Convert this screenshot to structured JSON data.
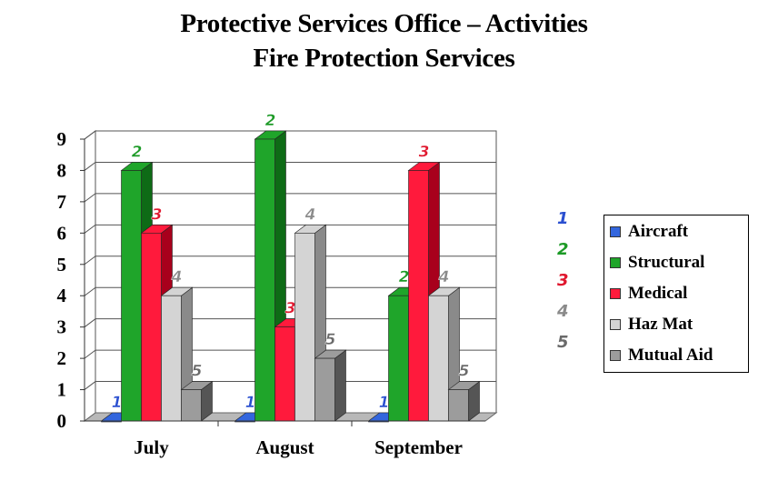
{
  "title": "Protective Services Office – Activities",
  "subtitle": "Fire Protection Services",
  "chart_data": {
    "type": "bar",
    "categories": [
      "July",
      "August",
      "September"
    ],
    "series": [
      {
        "name": "Aircraft",
        "values": [
          0,
          0,
          0
        ],
        "color": "#3366dd",
        "dark": "#1f3f99",
        "label": "1",
        "label_color": "#2a4fd0"
      },
      {
        "name": "Structural",
        "values": [
          8,
          9,
          4
        ],
        "color": "#1fa52a",
        "dark": "#0e6b16",
        "label": "2",
        "label_color": "#1c9a26"
      },
      {
        "name": "Medical",
        "values": [
          6,
          3,
          8
        ],
        "color": "#ff1a3c",
        "dark": "#a8001c",
        "label": "3",
        "label_color": "#e0182f"
      },
      {
        "name": "Haz Mat",
        "values": [
          4,
          6,
          4
        ],
        "color": "#d4d4d4",
        "dark": "#8a8a8a",
        "label": "4",
        "label_color": "#8a8a8a"
      },
      {
        "name": "Mutual Aid",
        "values": [
          1,
          2,
          1
        ],
        "color": "#9c9c9c",
        "dark": "#555555",
        "label": "5",
        "label_color": "#6a6a6a"
      }
    ],
    "ylim": [
      0,
      9
    ],
    "yticks": [
      "0",
      "1",
      "2",
      "3",
      "4",
      "5",
      "6",
      "7",
      "8",
      "9"
    ],
    "grid": true,
    "legend": "right"
  }
}
